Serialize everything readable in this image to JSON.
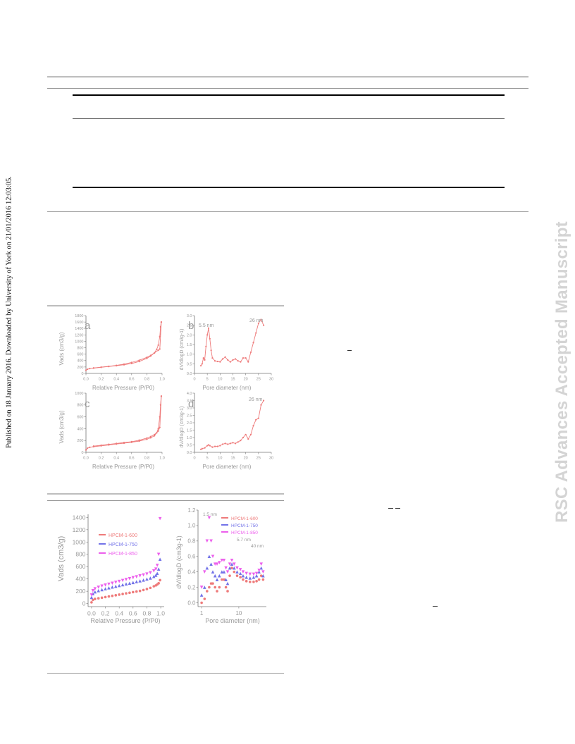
{
  "sidebar": {
    "published_note": "Published on 18 January 2016. Downloaded by University of York on 21/01/2016 12:03:05.",
    "watermark": "RSC Advances Accepted Manuscript"
  },
  "figure1": {
    "panel_a": {
      "letter": "a",
      "xlabel": "Relative Pressure (P/P0)",
      "ylabel": "Vads (cm3/g)"
    },
    "panel_b": {
      "letter": "b",
      "xlabel": "Pore diameter (nm)",
      "ylabel": "dV/dlogD (cm3g-1)",
      "ann1": "5.5 nm",
      "ann2": "26 nm"
    },
    "panel_c": {
      "letter": "c",
      "xlabel": "Relative Pressure (P/P0)",
      "ylabel": "Vads (cm3/g)"
    },
    "panel_d": {
      "letter": "d",
      "xlabel": "Pore diameter (nm)",
      "ylabel": "dV/dlogD (cm3g-1)",
      "ann1": "26 nm"
    }
  },
  "figure2": {
    "left": {
      "xlabel": "Relative Pressure (P/P0)",
      "ylabel": "Vads (cm3/g)",
      "legend": [
        "HPCM-1-600",
        "HPCM-1-750",
        "HPCM-1-850"
      ]
    },
    "right": {
      "xlabel": "Pore diameter (nm)",
      "ylabel": "dV/dlogD (cm3g-1)",
      "legend": [
        "HPCM-1-600",
        "HPCM-1-750",
        "HPCM-1-850"
      ],
      "ann1": "1.5 nm",
      "ann2": "5.7 nm",
      "ann3": "40 nm"
    }
  },
  "colors": {
    "s600": "#ee7a7a",
    "s750": "#7272e8",
    "s850": "#ec5fec",
    "axis": "#777777",
    "label": "#999999"
  },
  "chart_data": [
    {
      "id": "a",
      "type": "line",
      "xlabel": "Relative Pressure (P/P0)",
      "ylabel": "Vads (cm3/g)",
      "xlim": [
        0,
        1.0
      ],
      "ylim": [
        0,
        1800
      ],
      "xticks": [
        "0.0",
        "0.2",
        "0.4",
        "0.6",
        "0.8",
        "1.0"
      ],
      "yticks": [
        "0",
        "200",
        "400",
        "600",
        "800",
        "1000",
        "1200",
        "1400",
        "1600",
        "1800"
      ],
      "series": [
        {
          "x": [
            0.0,
            0.02,
            0.05,
            0.1,
            0.2,
            0.3,
            0.4,
            0.5,
            0.6,
            0.7,
            0.8,
            0.85,
            0.9,
            0.93,
            0.95,
            0.97,
            0.98,
            0.99
          ],
          "y": [
            100,
            130,
            150,
            165,
            190,
            215,
            240,
            270,
            310,
            370,
            470,
            540,
            640,
            750,
            880,
            1150,
            1450,
            1600
          ]
        },
        {
          "x": [
            0.99,
            0.97,
            0.95,
            0.9,
            0.85,
            0.8,
            0.7,
            0.6,
            0.5,
            0.4,
            0.3,
            0.2,
            0.1
          ],
          "y": [
            1600,
            760,
            720,
            640,
            560,
            500,
            410,
            340,
            290,
            250,
            220,
            195,
            170
          ]
        }
      ]
    },
    {
      "id": "b",
      "type": "line",
      "xlabel": "Pore diameter (nm)",
      "ylabel": "dV/dlogD (cm3g-1)",
      "xlim": [
        0,
        30
      ],
      "ylim": [
        0,
        3.0
      ],
      "xticks": [
        "0",
        "5",
        "10",
        "15",
        "20",
        "25",
        "30"
      ],
      "yticks": [
        "0.0",
        "0.5",
        "1.0",
        "1.5",
        "2.0",
        "2.5",
        "3.0"
      ],
      "series": [
        {
          "x": [
            2.5,
            3,
            3.5,
            4,
            4.5,
            5,
            5.5,
            6,
            6.5,
            7,
            8,
            9,
            10,
            11,
            12,
            13,
            14,
            15,
            16,
            17,
            18,
            19,
            20,
            21,
            22,
            23,
            24,
            25,
            26,
            27
          ],
          "y": [
            0.4,
            0.5,
            0.8,
            0.7,
            1.4,
            2.0,
            2.35,
            1.8,
            1.2,
            0.8,
            0.65,
            0.62,
            0.6,
            0.75,
            0.85,
            0.7,
            0.6,
            0.7,
            0.75,
            0.65,
            0.6,
            0.8,
            0.8,
            0.6,
            1.1,
            1.6,
            2.1,
            2.6,
            2.8,
            2.5
          ]
        }
      ]
    },
    {
      "id": "c",
      "type": "line",
      "xlabel": "Relative Pressure (P/P0)",
      "ylabel": "Vads (cm3/g)",
      "xlim": [
        0,
        1.0
      ],
      "ylim": [
        0,
        1000
      ],
      "xticks": [
        "0.0",
        "0.2",
        "0.4",
        "0.6",
        "0.8",
        "1.0"
      ],
      "yticks": [
        "0",
        "200",
        "400",
        "600",
        "800",
        "1000"
      ],
      "series": [
        {
          "x": [
            0.0,
            0.02,
            0.05,
            0.1,
            0.2,
            0.3,
            0.4,
            0.5,
            0.6,
            0.7,
            0.8,
            0.85,
            0.9,
            0.93,
            0.95,
            0.97,
            0.98,
            0.99
          ],
          "y": [
            40,
            70,
            85,
            95,
            110,
            125,
            140,
            155,
            170,
            190,
            220,
            245,
            280,
            330,
            400,
            600,
            800,
            950
          ]
        },
        {
          "x": [
            0.99,
            0.97,
            0.95,
            0.9,
            0.85,
            0.8,
            0.7,
            0.6,
            0.5,
            0.4,
            0.3,
            0.2,
            0.1
          ],
          "y": [
            950,
            420,
            360,
            300,
            265,
            240,
            205,
            180,
            165,
            150,
            135,
            120,
            105
          ]
        }
      ]
    },
    {
      "id": "d",
      "type": "line",
      "xlabel": "Pore diameter (nm)",
      "ylabel": "dV/dlogD (cm3g-1)",
      "xlim": [
        0,
        30
      ],
      "ylim": [
        0,
        4.0
      ],
      "xticks": [
        "0",
        "5",
        "10",
        "15",
        "20",
        "25",
        "30"
      ],
      "yticks": [
        "0.0",
        "0.5",
        "1.0",
        "1.5",
        "2.0",
        "2.5",
        "3.0",
        "3.5",
        "4.0"
      ],
      "series": [
        {
          "x": [
            2.5,
            3,
            4,
            5,
            5.5,
            6,
            7,
            8,
            9,
            10,
            11,
            12,
            13,
            14,
            15,
            16,
            17,
            18,
            19,
            20,
            21,
            22,
            23,
            24,
            25,
            26,
            27
          ],
          "y": [
            0.2,
            0.25,
            0.3,
            0.45,
            0.5,
            0.45,
            0.35,
            0.4,
            0.4,
            0.45,
            0.55,
            0.6,
            0.55,
            0.6,
            0.65,
            0.6,
            0.7,
            0.8,
            1.0,
            1.2,
            0.9,
            1.2,
            1.8,
            2.2,
            2.3,
            3.2,
            3.5
          ]
        }
      ]
    },
    {
      "id": "e",
      "type": "scatter",
      "xlabel": "Relative Pressure (P/P0)",
      "ylabel": "Vads (cm3/g)",
      "xlim": [
        -0.05,
        1.05
      ],
      "ylim": [
        -50,
        1450
      ],
      "xticks": [
        "0.0",
        "0.2",
        "0.4",
        "0.6",
        "0.8",
        "1.0"
      ],
      "yticks": [
        "0",
        "200",
        "400",
        "600",
        "800",
        "1000",
        "1200",
        "1400"
      ],
      "legend_position": "top-left",
      "series": [
        {
          "name": "HPCM-1-600",
          "marker": "circle",
          "x": [
            0.0,
            0.02,
            0.05,
            0.1,
            0.15,
            0.2,
            0.25,
            0.3,
            0.35,
            0.4,
            0.45,
            0.5,
            0.55,
            0.6,
            0.65,
            0.7,
            0.75,
            0.8,
            0.85,
            0.9,
            0.93,
            0.95,
            0.97,
            0.99
          ],
          "y": [
            20,
            60,
            75,
            85,
            95,
            105,
            115,
            125,
            135,
            145,
            155,
            165,
            175,
            185,
            195,
            205,
            220,
            235,
            255,
            280,
            295,
            310,
            330,
            380
          ]
        },
        {
          "name": "HPCM-1-750",
          "marker": "triangle-up",
          "x": [
            0.0,
            0.02,
            0.05,
            0.1,
            0.15,
            0.2,
            0.25,
            0.3,
            0.35,
            0.4,
            0.45,
            0.5,
            0.55,
            0.6,
            0.65,
            0.7,
            0.75,
            0.8,
            0.85,
            0.9,
            0.93,
            0.95,
            0.97,
            0.99
          ],
          "y": [
            100,
            160,
            190,
            210,
            225,
            240,
            255,
            268,
            280,
            292,
            305,
            318,
            330,
            342,
            355,
            368,
            382,
            398,
            415,
            440,
            460,
            490,
            560,
            720
          ]
        },
        {
          "name": "HPCM-1-850",
          "marker": "triangle-down",
          "x": [
            0.0,
            0.02,
            0.05,
            0.1,
            0.15,
            0.2,
            0.25,
            0.3,
            0.35,
            0.4,
            0.45,
            0.5,
            0.55,
            0.6,
            0.65,
            0.7,
            0.75,
            0.8,
            0.85,
            0.9,
            0.93,
            0.95,
            0.97,
            0.99
          ],
          "y": [
            140,
            210,
            240,
            265,
            285,
            300,
            315,
            330,
            345,
            360,
            375,
            390,
            405,
            420,
            435,
            450,
            465,
            480,
            500,
            530,
            560,
            620,
            800,
            1380
          ]
        }
      ]
    },
    {
      "id": "f",
      "type": "scatter",
      "xlabel": "Pore diameter (nm)",
      "ylabel": "dV/dlogD (cm3g-1)",
      "xscale": "log",
      "xlim": [
        0.8,
        55
      ],
      "ylim": [
        -0.05,
        1.2
      ],
      "xticks": [
        "1",
        "10"
      ],
      "yticks": [
        "0.0",
        "0.2",
        "0.4",
        "0.6",
        "0.8",
        "1.0",
        "1.2"
      ],
      "legend_position": "top-right",
      "series": [
        {
          "name": "HPCM-1-600",
          "marker": "circle",
          "x": [
            1.0,
            1.2,
            1.4,
            1.6,
            1.8,
            2.0,
            2.3,
            2.6,
            3.0,
            3.5,
            4.0,
            4.5,
            5.0,
            5.7,
            6.5,
            7.5,
            9,
            11,
            13,
            16,
            20,
            25,
            30,
            35,
            40,
            45
          ],
          "y": [
            0.0,
            0.05,
            0.15,
            0.2,
            0.25,
            0.25,
            0.2,
            0.15,
            0.2,
            0.3,
            0.3,
            0.2,
            0.15,
            0.35,
            0.45,
            0.4,
            0.35,
            0.33,
            0.3,
            0.28,
            0.27,
            0.27,
            0.28,
            0.3,
            0.35,
            0.3
          ]
        },
        {
          "name": "HPCM-1-750",
          "marker": "triangle-up",
          "x": [
            1.0,
            1.2,
            1.4,
            1.6,
            1.8,
            2.0,
            2.3,
            2.6,
            3.0,
            3.5,
            4.0,
            4.5,
            5.0,
            5.7,
            6.5,
            7.5,
            9,
            11,
            13,
            16,
            20,
            25,
            30,
            35,
            40,
            45
          ],
          "y": [
            0.1,
            0.2,
            0.45,
            0.6,
            0.5,
            0.4,
            0.35,
            0.3,
            0.35,
            0.4,
            0.4,
            0.3,
            0.25,
            0.45,
            0.5,
            0.45,
            0.4,
            0.38,
            0.35,
            0.33,
            0.32,
            0.33,
            0.35,
            0.4,
            0.45,
            0.35
          ]
        },
        {
          "name": "HPCM-1-850",
          "marker": "triangle-down",
          "x": [
            1.0,
            1.2,
            1.4,
            1.6,
            1.8,
            2.0,
            2.3,
            2.6,
            3.0,
            3.5,
            4.0,
            4.5,
            5.0,
            5.7,
            6.5,
            7.5,
            9,
            11,
            13,
            16,
            20,
            25,
            30,
            35,
            40,
            45
          ],
          "y": [
            0.2,
            0.4,
            0.8,
            1.1,
            0.8,
            0.6,
            0.5,
            0.5,
            0.52,
            0.55,
            0.55,
            0.45,
            0.4,
            0.5,
            0.55,
            0.5,
            0.45,
            0.43,
            0.4,
            0.38,
            0.37,
            0.37,
            0.38,
            0.42,
            0.5,
            0.4
          ]
        }
      ]
    }
  ]
}
